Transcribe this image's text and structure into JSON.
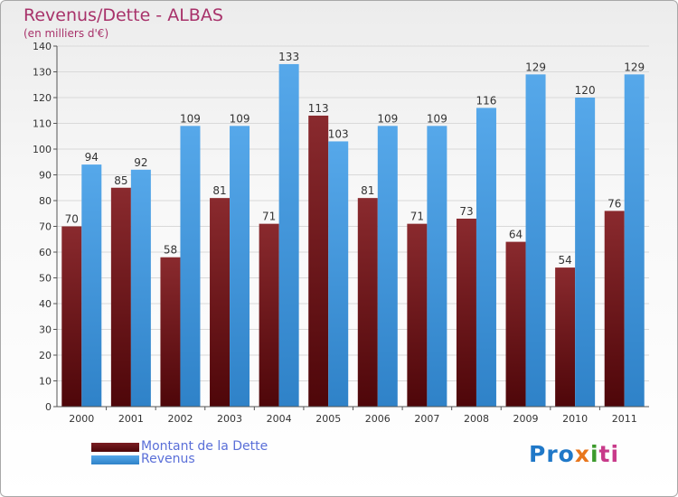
{
  "header": {
    "title": "Revenus/Dette - ALBAS",
    "subtitle": "(en milliers d'€)"
  },
  "chart_data": {
    "type": "bar",
    "categories": [
      "2000",
      "2001",
      "2002",
      "2003",
      "2004",
      "2005",
      "2006",
      "2007",
      "2008",
      "2009",
      "2010",
      "2011"
    ],
    "series": [
      {
        "name": "Montant de la Dette",
        "values": [
          70,
          85,
          58,
          81,
          71,
          113,
          81,
          71,
          73,
          64,
          54,
          76
        ],
        "color": "#7a1e22"
      },
      {
        "name": "Revenus",
        "values": [
          94,
          92,
          109,
          109,
          133,
          103,
          109,
          109,
          116,
          129,
          120,
          129
        ],
        "color": "#4a9de0"
      }
    ],
    "ylim": [
      0,
      140
    ],
    "yticks": [
      0,
      10,
      20,
      30,
      40,
      50,
      60,
      70,
      80,
      90,
      100,
      110,
      120,
      130,
      140
    ],
    "grid": true,
    "legend_position": "bottom-left"
  },
  "legend": {
    "items": [
      {
        "label": "Montant de la Dette",
        "color": "#5c0c10"
      },
      {
        "label": "Revenus",
        "color": "#4a9de0"
      }
    ]
  },
  "logo": {
    "parts": [
      "Pro",
      "x",
      "i",
      "ti"
    ]
  }
}
